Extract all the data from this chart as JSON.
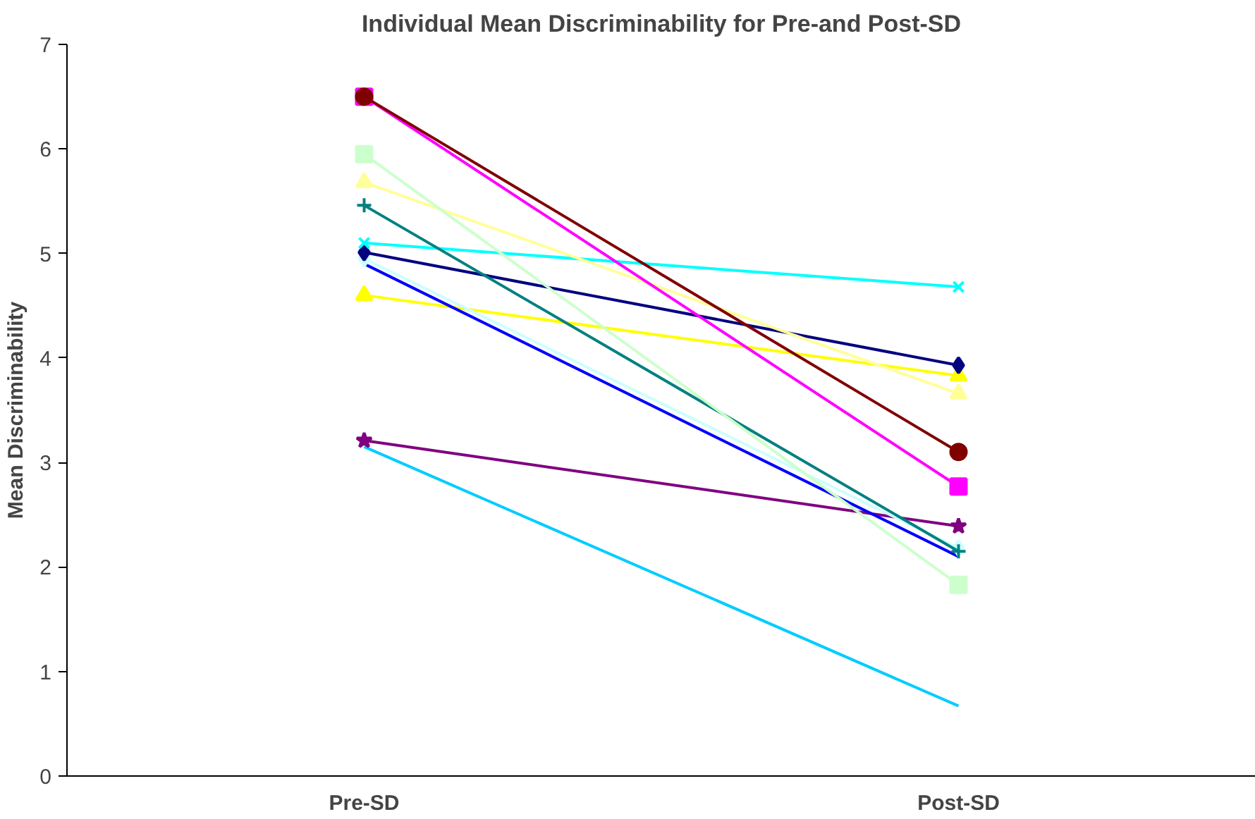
{
  "chart_data": {
    "type": "line",
    "title": "Individual Mean Discriminability for Pre-and Post-SD",
    "ylabel": "Mean Discriminability",
    "categories": [
      "Pre-SD",
      "Post-SD"
    ],
    "ylim": [
      0,
      7
    ],
    "yticks": [
      0,
      1,
      2,
      3,
      4,
      5,
      6,
      7
    ],
    "grid": false,
    "series": [
      {
        "color": "#800000",
        "marker": "circle",
        "values": [
          6.5,
          3.1
        ]
      },
      {
        "color": "#ff00ff",
        "marker": "square",
        "values": [
          6.5,
          2.77
        ]
      },
      {
        "color": "#ccffcc",
        "marker": "square",
        "values": [
          5.95,
          1.83
        ]
      },
      {
        "color": "#ffff99",
        "marker": "triangle",
        "values": [
          5.68,
          3.66
        ]
      },
      {
        "color": "#008080",
        "marker": "cross",
        "values": [
          5.46,
          2.15
        ]
      },
      {
        "color": "#00ffff",
        "marker": "x",
        "values": [
          5.1,
          4.68
        ]
      },
      {
        "color": "#000080",
        "marker": "diamond",
        "values": [
          5.01,
          3.93
        ]
      },
      {
        "color": "#ccffff",
        "marker": "diamond",
        "values": [
          4.95,
          2.18
        ]
      },
      {
        "color": "#0000ff",
        "marker": "none",
        "values": [
          4.9,
          2.1
        ]
      },
      {
        "color": "#ffff00",
        "marker": "triangle",
        "values": [
          4.6,
          3.83
        ]
      },
      {
        "color": "#800080",
        "marker": "star",
        "values": [
          3.21,
          2.39
        ]
      },
      {
        "color": "#00ccff",
        "marker": "none",
        "values": [
          3.15,
          0.67
        ]
      }
    ]
  }
}
